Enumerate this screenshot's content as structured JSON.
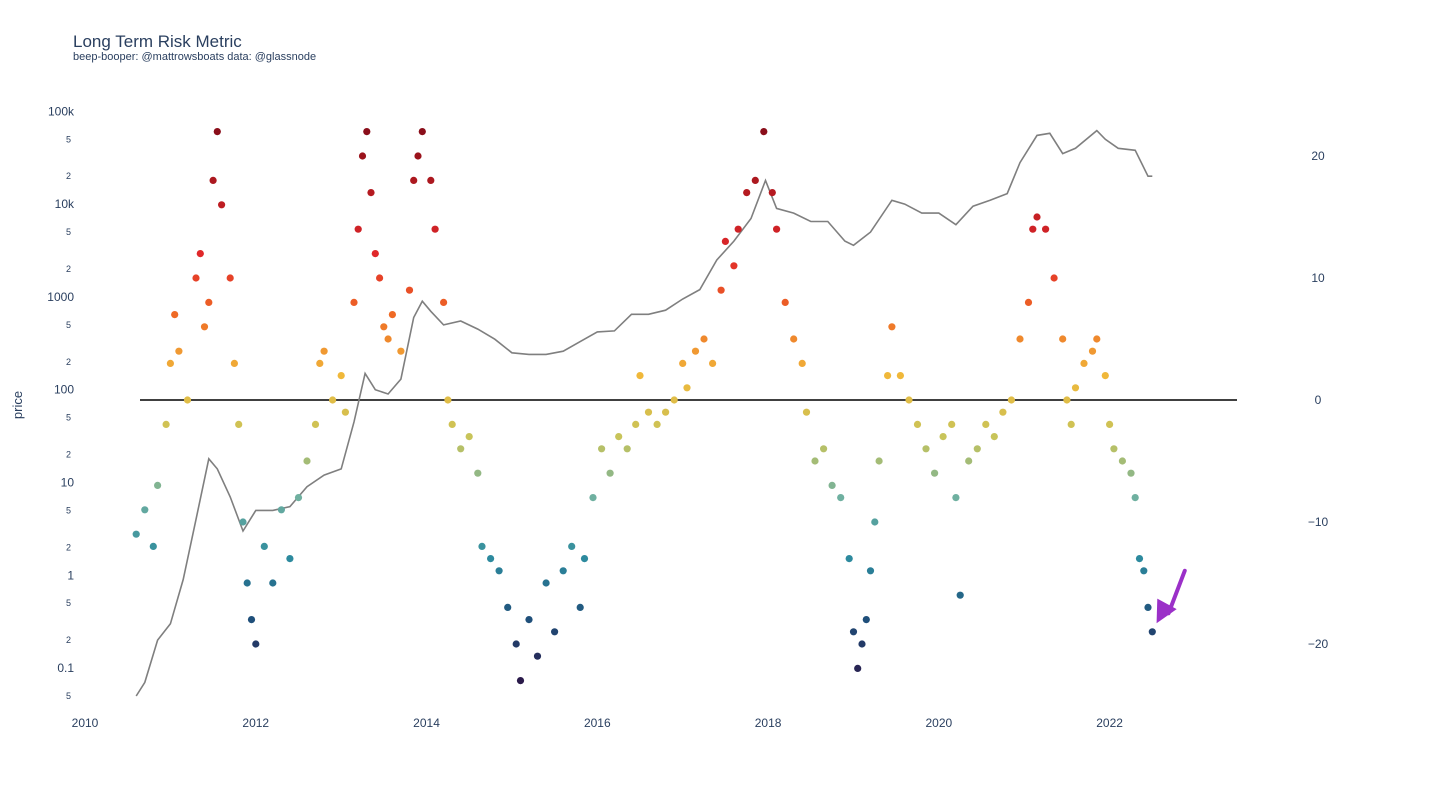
{
  "chart_data": {
    "type": "scatter",
    "title": "Long Term Risk Metric",
    "subtitle": "beep-booper: @mattrowsboats data: @glassnode",
    "ylabel": "price",
    "y_scale": "log",
    "ylim": [
      0.04,
      150000
    ],
    "y2lim": [
      -25,
      25
    ],
    "xlim": [
      2010.0,
      2023.0
    ],
    "x_ticks": [
      "2010",
      "2012",
      "2014",
      "2016",
      "2018",
      "2020",
      "2022"
    ],
    "y_ticks_major": [
      "0.1",
      "1",
      "10",
      "100",
      "1000",
      "10k",
      "100k"
    ],
    "y_ticks_minor": [
      "5",
      "2",
      "5",
      "2",
      "5",
      "2",
      "5",
      "2",
      "5",
      "2",
      "5",
      "2",
      "5"
    ],
    "y2_ticks": [
      "20",
      "10",
      "0",
      "−10",
      "−20"
    ],
    "zero_line": 0,
    "colorscale": [
      "#2a1a4a",
      "#1f4f7a",
      "#2d8a9e",
      "#6fb0a0",
      "#c8c45a",
      "#f0b83a",
      "#ef6a25",
      "#e0282a",
      "#b51a20",
      "#8a0e1a"
    ],
    "series": [
      {
        "kind": "line",
        "axis": "y",
        "color": "#7f7f7f",
        "points": [
          [
            2010.6,
            0.05
          ],
          [
            2010.7,
            0.07
          ],
          [
            2010.85,
            0.2
          ],
          [
            2011.0,
            0.3
          ],
          [
            2011.15,
            0.9
          ],
          [
            2011.3,
            4
          ],
          [
            2011.45,
            18
          ],
          [
            2011.55,
            14
          ],
          [
            2011.7,
            7
          ],
          [
            2011.85,
            3
          ],
          [
            2012.0,
            5
          ],
          [
            2012.2,
            5
          ],
          [
            2012.4,
            5.5
          ],
          [
            2012.6,
            9
          ],
          [
            2012.8,
            12
          ],
          [
            2013.0,
            14
          ],
          [
            2013.15,
            45
          ],
          [
            2013.28,
            150
          ],
          [
            2013.4,
            100
          ],
          [
            2013.55,
            90
          ],
          [
            2013.7,
            130
          ],
          [
            2013.85,
            600
          ],
          [
            2013.95,
            900
          ],
          [
            2014.05,
            700
          ],
          [
            2014.2,
            500
          ],
          [
            2014.4,
            550
          ],
          [
            2014.6,
            450
          ],
          [
            2014.8,
            350
          ],
          [
            2015.0,
            250
          ],
          [
            2015.2,
            240
          ],
          [
            2015.4,
            240
          ],
          [
            2015.6,
            260
          ],
          [
            2015.8,
            330
          ],
          [
            2016.0,
            420
          ],
          [
            2016.2,
            430
          ],
          [
            2016.4,
            650
          ],
          [
            2016.6,
            650
          ],
          [
            2016.8,
            720
          ],
          [
            2017.0,
            950
          ],
          [
            2017.2,
            1200
          ],
          [
            2017.4,
            2500
          ],
          [
            2017.6,
            4000
          ],
          [
            2017.8,
            7000
          ],
          [
            2017.97,
            18000
          ],
          [
            2018.1,
            9000
          ],
          [
            2018.3,
            8000
          ],
          [
            2018.5,
            6500
          ],
          [
            2018.7,
            6500
          ],
          [
            2018.9,
            4000
          ],
          [
            2019.0,
            3600
          ],
          [
            2019.2,
            5000
          ],
          [
            2019.45,
            11000
          ],
          [
            2019.6,
            10000
          ],
          [
            2019.8,
            8000
          ],
          [
            2020.0,
            8000
          ],
          [
            2020.2,
            6000
          ],
          [
            2020.4,
            9500
          ],
          [
            2020.6,
            11000
          ],
          [
            2020.8,
            13000
          ],
          [
            2020.95,
            28000
          ],
          [
            2021.15,
            55000
          ],
          [
            2021.3,
            58000
          ],
          [
            2021.45,
            35000
          ],
          [
            2021.6,
            40000
          ],
          [
            2021.85,
            62000
          ],
          [
            2021.95,
            50000
          ],
          [
            2022.1,
            40000
          ],
          [
            2022.3,
            38000
          ],
          [
            2022.45,
            20000
          ],
          [
            2022.5,
            20000
          ]
        ]
      },
      {
        "kind": "scatter",
        "axis": "y2",
        "color_by": "value",
        "points": [
          [
            2010.6,
            -11
          ],
          [
            2010.7,
            -9
          ],
          [
            2010.8,
            -12
          ],
          [
            2010.85,
            -7
          ],
          [
            2010.95,
            -2
          ],
          [
            2011.0,
            3
          ],
          [
            2011.05,
            7
          ],
          [
            2011.1,
            4
          ],
          [
            2011.2,
            0
          ],
          [
            2011.3,
            10
          ],
          [
            2011.35,
            12
          ],
          [
            2011.4,
            6
          ],
          [
            2011.45,
            8
          ],
          [
            2011.5,
            18
          ],
          [
            2011.55,
            22
          ],
          [
            2011.6,
            16
          ],
          [
            2011.7,
            10
          ],
          [
            2011.75,
            3
          ],
          [
            2011.8,
            -2
          ],
          [
            2011.85,
            -10
          ],
          [
            2011.9,
            -15
          ],
          [
            2011.95,
            -18
          ],
          [
            2012.0,
            -20
          ],
          [
            2012.1,
            -12
          ],
          [
            2012.2,
            -15
          ],
          [
            2012.3,
            -9
          ],
          [
            2012.4,
            -13
          ],
          [
            2012.5,
            -8
          ],
          [
            2012.6,
            -5
          ],
          [
            2012.7,
            -2
          ],
          [
            2012.75,
            3
          ],
          [
            2012.8,
            4
          ],
          [
            2012.9,
            0
          ],
          [
            2013.0,
            2
          ],
          [
            2013.05,
            -1
          ],
          [
            2013.15,
            8
          ],
          [
            2013.2,
            14
          ],
          [
            2013.25,
            20
          ],
          [
            2013.3,
            22
          ],
          [
            2013.35,
            17
          ],
          [
            2013.4,
            12
          ],
          [
            2013.45,
            10
          ],
          [
            2013.5,
            6
          ],
          [
            2013.55,
            5
          ],
          [
            2013.6,
            7
          ],
          [
            2013.7,
            4
          ],
          [
            2013.8,
            9
          ],
          [
            2013.85,
            18
          ],
          [
            2013.9,
            20
          ],
          [
            2013.95,
            22
          ],
          [
            2014.05,
            18
          ],
          [
            2014.1,
            14
          ],
          [
            2014.2,
            8
          ],
          [
            2014.25,
            0
          ],
          [
            2014.3,
            -2
          ],
          [
            2014.4,
            -4
          ],
          [
            2014.5,
            -3
          ],
          [
            2014.6,
            -6
          ],
          [
            2014.65,
            -12
          ],
          [
            2014.75,
            -13
          ],
          [
            2014.85,
            -14
          ],
          [
            2014.95,
            -17
          ],
          [
            2015.05,
            -20
          ],
          [
            2015.1,
            -23
          ],
          [
            2015.2,
            -18
          ],
          [
            2015.3,
            -21
          ],
          [
            2015.4,
            -15
          ],
          [
            2015.5,
            -19
          ],
          [
            2015.6,
            -14
          ],
          [
            2015.7,
            -12
          ],
          [
            2015.8,
            -17
          ],
          [
            2015.85,
            -13
          ],
          [
            2015.95,
            -8
          ],
          [
            2016.05,
            -4
          ],
          [
            2016.15,
            -6
          ],
          [
            2016.25,
            -3
          ],
          [
            2016.35,
            -4
          ],
          [
            2016.45,
            -2
          ],
          [
            2016.5,
            2
          ],
          [
            2016.6,
            -1
          ],
          [
            2016.7,
            -2
          ],
          [
            2016.8,
            -1
          ],
          [
            2016.9,
            0
          ],
          [
            2017.0,
            3
          ],
          [
            2017.05,
            1
          ],
          [
            2017.15,
            4
          ],
          [
            2017.25,
            5
          ],
          [
            2017.35,
            3
          ],
          [
            2017.45,
            9
          ],
          [
            2017.5,
            13
          ],
          [
            2017.6,
            11
          ],
          [
            2017.65,
            14
          ],
          [
            2017.75,
            17
          ],
          [
            2017.85,
            18
          ],
          [
            2017.95,
            22
          ],
          [
            2018.05,
            17
          ],
          [
            2018.1,
            14
          ],
          [
            2018.2,
            8
          ],
          [
            2018.3,
            5
          ],
          [
            2018.4,
            3
          ],
          [
            2018.45,
            -1
          ],
          [
            2018.55,
            -5
          ],
          [
            2018.65,
            -4
          ],
          [
            2018.75,
            -7
          ],
          [
            2018.85,
            -8
          ],
          [
            2018.95,
            -13
          ],
          [
            2019.0,
            -19
          ],
          [
            2019.05,
            -22
          ],
          [
            2019.1,
            -20
          ],
          [
            2019.15,
            -18
          ],
          [
            2019.2,
            -14
          ],
          [
            2019.25,
            -10
          ],
          [
            2019.3,
            -5
          ],
          [
            2019.4,
            2
          ],
          [
            2019.45,
            6
          ],
          [
            2019.55,
            2
          ],
          [
            2019.65,
            0
          ],
          [
            2019.75,
            -2
          ],
          [
            2019.85,
            -4
          ],
          [
            2019.95,
            -6
          ],
          [
            2020.05,
            -3
          ],
          [
            2020.15,
            -2
          ],
          [
            2020.2,
            -8
          ],
          [
            2020.25,
            -16
          ],
          [
            2020.35,
            -5
          ],
          [
            2020.45,
            -4
          ],
          [
            2020.55,
            -2
          ],
          [
            2020.65,
            -3
          ],
          [
            2020.75,
            -1
          ],
          [
            2020.85,
            0
          ],
          [
            2020.95,
            5
          ],
          [
            2021.05,
            8
          ],
          [
            2021.1,
            14
          ],
          [
            2021.15,
            15
          ],
          [
            2021.25,
            14
          ],
          [
            2021.35,
            10
          ],
          [
            2021.45,
            5
          ],
          [
            2021.5,
            0
          ],
          [
            2021.55,
            -2
          ],
          [
            2021.6,
            1
          ],
          [
            2021.7,
            3
          ],
          [
            2021.8,
            4
          ],
          [
            2021.85,
            5
          ],
          [
            2021.95,
            2
          ],
          [
            2022.0,
            -2
          ],
          [
            2022.05,
            -4
          ],
          [
            2022.15,
            -5
          ],
          [
            2022.25,
            -6
          ],
          [
            2022.3,
            -8
          ],
          [
            2022.35,
            -13
          ],
          [
            2022.4,
            -14
          ],
          [
            2022.45,
            -17
          ],
          [
            2022.5,
            -19
          ]
        ]
      }
    ],
    "annotations": [
      {
        "type": "arrow",
        "color": "#9b30c8",
        "from": [
          2022.88,
          -14
        ],
        "to": [
          2022.55,
          -18.3
        ]
      }
    ]
  }
}
